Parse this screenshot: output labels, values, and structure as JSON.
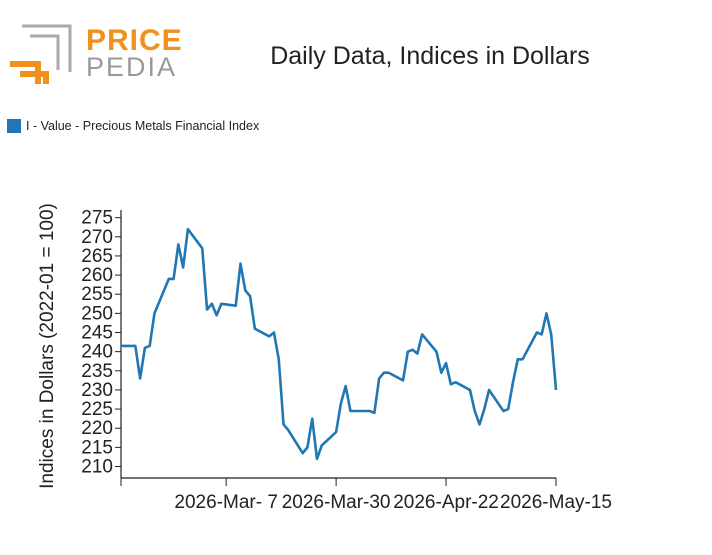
{
  "logo": {
    "word1": "PRICE",
    "word2": "PEDIA"
  },
  "chart_data": {
    "type": "line",
    "title": "Daily Data, Indices in Dollars",
    "ylabel": "Indices in Dollars (2022-01 = 100)",
    "xlabel": "",
    "ylim": [
      207,
      277
    ],
    "yticks": [
      210,
      215,
      220,
      225,
      230,
      235,
      240,
      245,
      250,
      255,
      260,
      265,
      270,
      275
    ],
    "xticks": [
      "2026-Mar- 7",
      "2026-Mar-30",
      "2026-Apr-22",
      "2026-May-15"
    ],
    "grid": false,
    "legend_position": "top-left",
    "series": [
      {
        "name": "I - Value - Precious Metals Financial Index",
        "color": "#1f77b4",
        "points": [
          [
            "2026-02-13",
            241.5
          ],
          [
            "2026-02-16",
            241.5
          ],
          [
            "2026-02-17",
            233.0
          ],
          [
            "2026-02-18",
            241.0
          ],
          [
            "2026-02-19",
            241.5
          ],
          [
            "2026-02-20",
            250.0
          ],
          [
            "2026-02-23",
            259.0
          ],
          [
            "2026-02-24",
            259.0
          ],
          [
            "2026-02-25",
            268.0
          ],
          [
            "2026-02-26",
            262.0
          ],
          [
            "2026-02-27",
            272.0
          ],
          [
            "2026-03-02",
            267.0
          ],
          [
            "2026-03-03",
            251.0
          ],
          [
            "2026-03-04",
            252.5
          ],
          [
            "2026-03-05",
            249.5
          ],
          [
            "2026-03-06",
            252.5
          ],
          [
            "2026-03-09",
            252.0
          ],
          [
            "2026-03-10",
            263.0
          ],
          [
            "2026-03-11",
            256.0
          ],
          [
            "2026-03-12",
            254.5
          ],
          [
            "2026-03-13",
            246.0
          ],
          [
            "2026-03-16",
            244.0
          ],
          [
            "2026-03-17",
            245.0
          ],
          [
            "2026-03-18",
            238.0
          ],
          [
            "2026-03-19",
            221.0
          ],
          [
            "2026-03-20",
            219.5
          ],
          [
            "2026-03-23",
            213.5
          ],
          [
            "2026-03-24",
            215.0
          ],
          [
            "2026-03-25",
            222.5
          ],
          [
            "2026-03-26",
            212.0
          ],
          [
            "2026-03-27",
            215.5
          ],
          [
            "2026-03-30",
            219.0
          ],
          [
            "2026-03-31",
            226.5
          ],
          [
            "2026-04-01",
            231.0
          ],
          [
            "2026-04-02",
            224.5
          ],
          [
            "2026-04-06",
            224.5
          ],
          [
            "2026-04-07",
            224.0
          ],
          [
            "2026-04-08",
            233.0
          ],
          [
            "2026-04-09",
            234.5
          ],
          [
            "2026-04-10",
            234.5
          ],
          [
            "2026-04-13",
            232.5
          ],
          [
            "2026-04-14",
            240.0
          ],
          [
            "2026-04-15",
            240.5
          ],
          [
            "2026-04-16",
            239.5
          ],
          [
            "2026-04-17",
            244.5
          ],
          [
            "2026-04-20",
            240.0
          ],
          [
            "2026-04-21",
            234.5
          ],
          [
            "2026-04-22",
            237.0
          ],
          [
            "2026-04-23",
            231.5
          ],
          [
            "2026-04-24",
            232.0
          ],
          [
            "2026-04-27",
            230.0
          ],
          [
            "2026-04-28",
            224.5
          ],
          [
            "2026-04-29",
            221.0
          ],
          [
            "2026-04-30",
            225.0
          ],
          [
            "2026-05-01",
            230.0
          ],
          [
            "2026-05-04",
            224.5
          ],
          [
            "2026-05-05",
            225.0
          ],
          [
            "2026-05-06",
            232.0
          ],
          [
            "2026-05-07",
            238.0
          ],
          [
            "2026-05-08",
            238.0
          ],
          [
            "2026-05-11",
            245.0
          ],
          [
            "2026-05-12",
            244.5
          ],
          [
            "2026-05-13",
            250.0
          ],
          [
            "2026-05-14",
            244.5
          ],
          [
            "2026-05-15",
            230.0
          ]
        ]
      }
    ]
  }
}
